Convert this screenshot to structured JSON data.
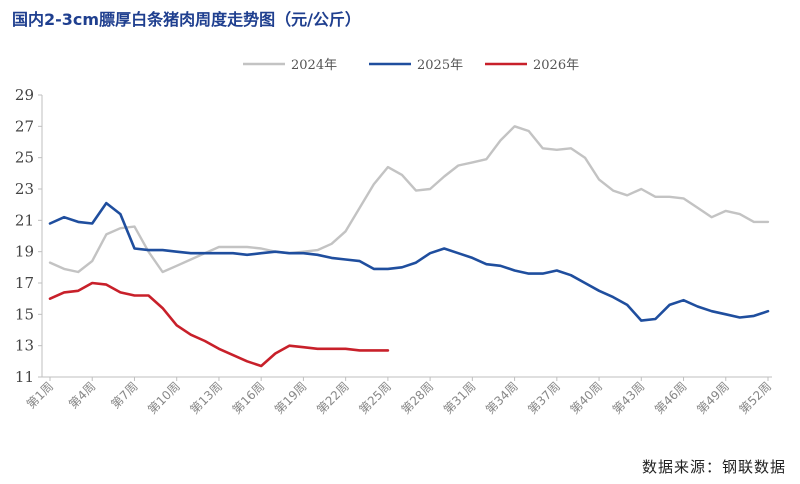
{
  "header": {
    "title": "国内2-3cm膘厚白条猪肉周度走势图（元/公斤）"
  },
  "footer": {
    "source": "数据来源：钢联数据"
  },
  "chart_data": {
    "type": "line",
    "title": "国内2-3cm膘厚白条猪肉周度走势图（元/公斤）",
    "xlabel": "",
    "ylabel": "",
    "ylim": [
      11,
      29
    ],
    "yticks": [
      11,
      13,
      15,
      17,
      19,
      21,
      23,
      25,
      27,
      29
    ],
    "x_tick_labels": [
      "第1周",
      "第4周",
      "第7周",
      "第10周",
      "第13周",
      "第16周",
      "第19周",
      "第22周",
      "第25周",
      "第28周",
      "第31周",
      "第34周",
      "第37周",
      "第40周",
      "第43周",
      "第46周",
      "第49周",
      "第52周"
    ],
    "x_tick_weeks": [
      1,
      4,
      7,
      10,
      13,
      16,
      19,
      22,
      25,
      28,
      31,
      34,
      37,
      40,
      43,
      46,
      49,
      52
    ],
    "x_range": [
      1,
      52
    ],
    "legend_position": "top-center",
    "grid": false,
    "series": [
      {
        "name": "2024年",
        "color": "#c3c3c3",
        "x": [
          1,
          2,
          3,
          4,
          5,
          6,
          7,
          8,
          9,
          10,
          11,
          12,
          13,
          14,
          15,
          16,
          17,
          18,
          19,
          20,
          21,
          22,
          23,
          24,
          25,
          26,
          27,
          28,
          29,
          30,
          31,
          32,
          33,
          34,
          35,
          36,
          37,
          38,
          39,
          40,
          41,
          42,
          43,
          44,
          45,
          46,
          47,
          48,
          49,
          50,
          51,
          52
        ],
        "values": [
          18.3,
          17.9,
          17.7,
          18.4,
          20.1,
          20.5,
          20.6,
          19.0,
          17.7,
          18.1,
          18.5,
          18.9,
          19.3,
          19.3,
          19.3,
          19.2,
          19.0,
          18.9,
          19.0,
          19.1,
          19.5,
          20.3,
          21.8,
          23.3,
          24.4,
          23.9,
          22.9,
          23.0,
          23.8,
          24.5,
          24.7,
          24.9,
          26.1,
          27.0,
          26.7,
          25.6,
          25.5,
          25.6,
          25.0,
          23.6,
          22.9,
          22.6,
          23.0,
          22.5,
          22.5,
          22.4,
          21.8,
          21.2,
          21.6,
          21.4,
          20.9,
          20.9
        ]
      },
      {
        "name": "2025年",
        "color": "#1f4e9e",
        "x": [
          1,
          2,
          3,
          4,
          5,
          6,
          7,
          8,
          9,
          10,
          11,
          12,
          13,
          14,
          15,
          16,
          17,
          18,
          19,
          20,
          21,
          22,
          23,
          24,
          25,
          26,
          27,
          28,
          29,
          30,
          31,
          32,
          33,
          34,
          35,
          36,
          37,
          38,
          39,
          40,
          41,
          42,
          43,
          44,
          45,
          46,
          47,
          48,
          49,
          50,
          51,
          52
        ],
        "values": [
          20.8,
          21.2,
          20.9,
          20.8,
          22.1,
          21.4,
          19.2,
          19.1,
          19.1,
          19.0,
          18.9,
          18.9,
          18.9,
          18.9,
          18.8,
          18.9,
          19.0,
          18.9,
          18.9,
          18.8,
          18.6,
          18.5,
          18.4,
          17.9,
          17.9,
          18.0,
          18.3,
          18.9,
          19.2,
          18.9,
          18.6,
          18.2,
          18.1,
          17.8,
          17.6,
          17.6,
          17.8,
          17.5,
          17.0,
          16.5,
          16.1,
          15.6,
          14.6,
          14.7,
          15.6,
          15.9,
          15.5,
          15.2,
          15.0,
          14.8,
          14.9,
          15.2
        ]
      },
      {
        "name": "2026年",
        "color": "#c8202a",
        "x": [
          1,
          2,
          3,
          4,
          5,
          6,
          7,
          8,
          9,
          10,
          11,
          12,
          13,
          14,
          15,
          16,
          17,
          18,
          19,
          20,
          21,
          22,
          23,
          24,
          25
        ],
        "values": [
          16.0,
          16.4,
          16.5,
          17.0,
          16.9,
          16.4,
          16.2,
          16.2,
          15.4,
          14.3,
          13.7,
          13.3,
          12.8,
          12.4,
          12.0,
          11.7,
          12.5,
          13.0,
          12.9,
          12.8,
          12.8,
          12.8,
          12.7,
          12.7,
          12.7
        ]
      }
    ]
  }
}
